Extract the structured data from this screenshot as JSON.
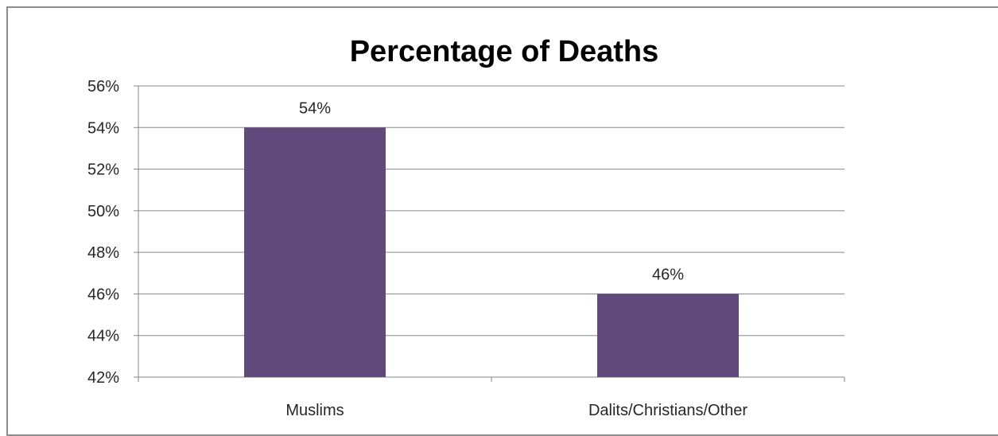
{
  "chart_data": {
    "type": "bar",
    "title": "Percentage of Deaths",
    "categories": [
      "Muslims",
      "Dalits/Christians/Other"
    ],
    "values": [
      54,
      46
    ],
    "data_labels": [
      "54%",
      "46%"
    ],
    "xlabel": "",
    "ylabel": "",
    "ylim": [
      42,
      56
    ],
    "y_ticks": [
      "42%",
      "44%",
      "46%",
      "48%",
      "50%",
      "52%",
      "54%",
      "56%"
    ],
    "y_tick_values": [
      42,
      44,
      46,
      48,
      50,
      52,
      54,
      56
    ],
    "grid": true,
    "legend": "none",
    "bar_color": "#604a7b",
    "grid_color": "#868686"
  }
}
